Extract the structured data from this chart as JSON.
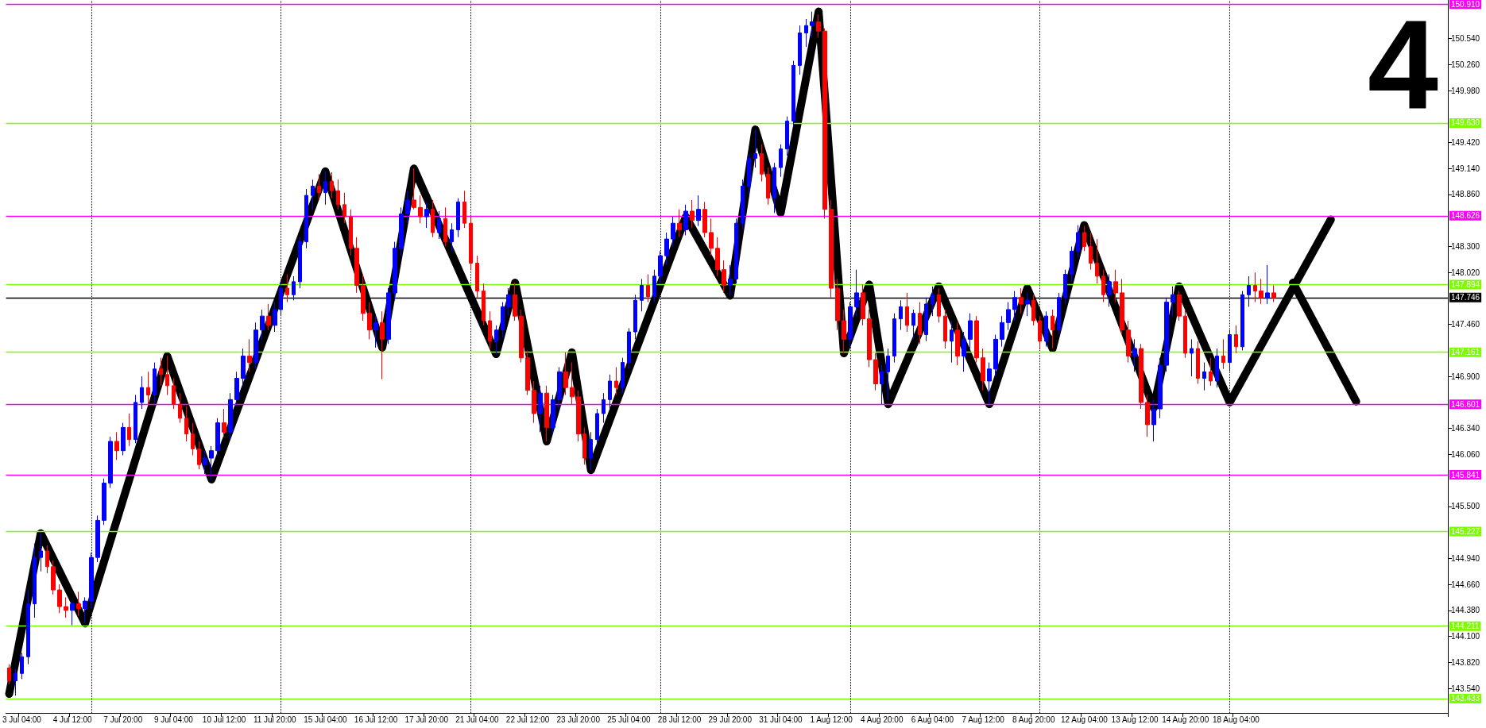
{
  "chart_data": {
    "type": "candlestick",
    "categories": [
      null,
      null,
      "3 Jul 04:00",
      null,
      null,
      null,
      null,
      null,
      null,
      null,
      "4 Jul 12:00",
      null,
      null,
      null,
      null,
      null,
      null,
      null,
      "7 Jul 20:00",
      null,
      null,
      null,
      null,
      null,
      null,
      null,
      "9 Jul 04:00",
      null,
      null,
      null,
      null,
      null,
      null,
      null,
      "10 Jul 12:00",
      null,
      null,
      null,
      null,
      null,
      null,
      null,
      "11 Jul 20:00",
      null,
      null,
      null,
      null,
      null,
      null,
      null,
      "15 Jul 04:00",
      null,
      null,
      null,
      null,
      null,
      null,
      null,
      "16 Jul 12:00",
      null,
      null,
      null,
      null,
      null,
      null,
      null,
      "17 Jul 20:00",
      null,
      null,
      null,
      null,
      null,
      null,
      null,
      "21 Jul 04:00",
      null,
      null,
      null,
      null,
      null,
      null,
      null,
      "22 Jul 12:00",
      null,
      null,
      null,
      null,
      null,
      null,
      null,
      "23 Jul 20:00",
      null,
      null,
      null,
      null,
      null,
      null,
      null,
      "25 Jul 04:00",
      null,
      null,
      null,
      null,
      null,
      null,
      null,
      "28 Jul 12:00",
      null,
      null,
      null,
      null,
      null,
      null,
      null,
      "29 Jul 20:00",
      null,
      null,
      null,
      null,
      null,
      null,
      null,
      "31 Jul 04:00",
      null,
      null,
      null,
      null,
      null,
      null,
      null,
      "1 Aug 12:00",
      null,
      null,
      null,
      null,
      null,
      null,
      null,
      "4 Aug 20:00",
      null,
      null,
      null,
      null,
      null,
      null,
      null,
      "6 Aug 04:00",
      null,
      null,
      null,
      null,
      null,
      null,
      null,
      "7 Aug 12:00",
      null,
      null,
      null,
      null,
      null,
      null,
      null,
      "8 Aug 20:00",
      null,
      null,
      null,
      null,
      null,
      null,
      null,
      "12 Aug 04:00",
      null,
      null,
      null,
      null,
      null,
      null,
      null,
      "13 Aug 12:00",
      null,
      null,
      null,
      null,
      null,
      null,
      null,
      "14 Aug 20:00",
      null,
      null,
      null,
      null,
      null,
      null,
      null,
      "18 Aug 04:00",
      null,
      null,
      null,
      null,
      null,
      null,
      null,
      null,
      null,
      null,
      null,
      null,
      null,
      null,
      null,
      null,
      null,
      null,
      null,
      null,
      null,
      null,
      null,
      null,
      null,
      null,
      null,
      null,
      null,
      null,
      null,
      null,
      null
    ],
    "ohlc": [
      [
        143.76,
        143.8,
        143.58,
        143.62
      ],
      [
        143.62,
        143.75,
        143.46,
        143.7
      ],
      [
        143.7,
        143.92,
        143.64,
        143.88
      ],
      [
        143.88,
        144.6,
        143.8,
        144.45
      ],
      [
        144.45,
        145.1,
        144.3,
        144.95
      ],
      [
        144.95,
        145.21,
        144.8,
        145.02
      ],
      [
        145.02,
        145.08,
        144.78,
        144.85
      ],
      [
        144.85,
        144.92,
        144.55,
        144.6
      ],
      [
        144.6,
        144.66,
        144.35,
        144.42
      ],
      [
        144.42,
        144.52,
        144.3,
        144.38
      ],
      [
        144.38,
        144.48,
        144.22,
        144.45
      ],
      [
        144.45,
        144.58,
        144.32,
        144.4
      ],
      [
        144.4,
        144.52,
        144.24,
        144.48
      ],
      [
        144.48,
        145.0,
        144.4,
        144.95
      ],
      [
        144.95,
        145.4,
        144.9,
        145.35
      ],
      [
        145.35,
        145.8,
        145.3,
        145.75
      ],
      [
        145.75,
        146.25,
        145.7,
        146.2
      ],
      [
        146.2,
        146.3,
        146.0,
        146.1
      ],
      [
        146.1,
        146.4,
        146.05,
        146.35
      ],
      [
        146.35,
        146.5,
        146.15,
        146.22
      ],
      [
        146.22,
        146.7,
        146.18,
        146.62
      ],
      [
        146.62,
        146.9,
        146.55,
        146.78
      ],
      [
        146.78,
        146.95,
        146.6,
        146.7
      ],
      [
        146.7,
        147.05,
        146.62,
        146.98
      ],
      [
        146.98,
        147.1,
        146.8,
        146.92
      ],
      [
        146.92,
        147.12,
        146.7,
        146.8
      ],
      [
        146.8,
        146.88,
        146.55,
        146.6
      ],
      [
        146.6,
        146.72,
        146.4,
        146.45
      ],
      [
        146.45,
        146.58,
        146.2,
        146.28
      ],
      [
        146.28,
        146.4,
        146.05,
        146.12
      ],
      [
        146.12,
        146.2,
        145.9,
        145.95
      ],
      [
        145.95,
        146.1,
        145.85,
        146.02
      ],
      [
        146.02,
        146.15,
        145.79,
        146.1
      ],
      [
        146.1,
        146.45,
        146.05,
        146.4
      ],
      [
        146.4,
        146.55,
        146.25,
        146.3
      ],
      [
        146.3,
        146.72,
        146.22,
        146.65
      ],
      [
        146.65,
        146.95,
        146.58,
        146.88
      ],
      [
        146.88,
        147.2,
        146.8,
        147.12
      ],
      [
        147.12,
        147.3,
        146.95,
        147.05
      ],
      [
        147.05,
        147.48,
        146.98,
        147.4
      ],
      [
        147.4,
        147.62,
        147.3,
        147.55
      ],
      [
        147.55,
        147.68,
        147.4,
        147.45
      ],
      [
        147.45,
        147.7,
        147.38,
        147.62
      ],
      [
        147.62,
        147.92,
        147.55,
        147.85
      ],
      [
        147.85,
        148.0,
        147.7,
        147.78
      ],
      [
        147.78,
        147.98,
        147.72,
        147.92
      ],
      [
        147.92,
        148.4,
        147.85,
        148.35
      ],
      [
        148.35,
        148.92,
        148.28,
        148.85
      ],
      [
        148.85,
        149.02,
        148.7,
        148.95
      ],
      [
        148.95,
        149.08,
        148.8,
        148.88
      ],
      [
        148.88,
        149.11,
        148.75,
        149.0
      ],
      [
        149.0,
        149.1,
        148.82,
        148.9
      ],
      [
        148.9,
        149.02,
        148.7,
        148.75
      ],
      [
        148.75,
        148.88,
        148.55,
        148.62
      ],
      [
        148.62,
        148.7,
        148.2,
        148.28
      ],
      [
        148.28,
        148.4,
        147.8,
        147.88
      ],
      [
        147.88,
        148.0,
        147.5,
        147.58
      ],
      [
        147.58,
        147.7,
        147.3,
        147.4
      ],
      [
        147.4,
        147.55,
        147.21,
        147.48
      ],
      [
        147.48,
        147.6,
        146.87,
        147.3
      ],
      [
        147.3,
        147.85,
        147.25,
        147.8
      ],
      [
        147.8,
        148.35,
        147.72,
        148.28
      ],
      [
        148.28,
        148.72,
        148.2,
        148.65
      ],
      [
        148.65,
        148.9,
        148.55,
        148.8
      ],
      [
        148.8,
        149.14,
        148.7,
        148.72
      ],
      [
        148.72,
        148.85,
        148.55,
        148.62
      ],
      [
        148.62,
        148.78,
        148.5,
        148.7
      ],
      [
        148.7,
        148.8,
        148.4,
        148.45
      ],
      [
        148.45,
        148.68,
        148.38,
        148.6
      ],
      [
        148.6,
        148.72,
        148.3,
        148.35
      ],
      [
        148.35,
        148.55,
        148.25,
        148.48
      ],
      [
        148.48,
        148.82,
        148.4,
        148.78
      ],
      [
        148.78,
        148.9,
        148.5,
        148.55
      ],
      [
        148.55,
        148.62,
        148.05,
        148.12
      ],
      [
        148.12,
        148.2,
        147.75,
        147.82
      ],
      [
        147.82,
        147.9,
        147.45,
        147.5
      ],
      [
        147.5,
        147.6,
        147.2,
        147.28
      ],
      [
        147.28,
        147.45,
        147.14,
        147.4
      ],
      [
        147.4,
        147.7,
        147.32,
        147.65
      ],
      [
        147.65,
        147.85,
        147.55,
        147.78
      ],
      [
        147.78,
        147.91,
        147.5,
        147.55
      ],
      [
        147.55,
        147.62,
        147.05,
        147.1
      ],
      [
        147.1,
        147.18,
        146.7,
        146.75
      ],
      [
        146.75,
        146.85,
        146.4,
        146.5
      ],
      [
        146.5,
        146.8,
        146.3,
        146.72
      ],
      [
        146.72,
        146.8,
        146.2,
        146.35
      ],
      [
        146.35,
        146.7,
        146.28,
        146.65
      ],
      [
        146.65,
        147.0,
        146.55,
        146.95
      ],
      [
        146.95,
        147.16,
        146.7,
        146.78
      ],
      [
        146.78,
        147.05,
        146.6,
        146.68
      ],
      [
        146.68,
        146.75,
        146.2,
        146.28
      ],
      [
        146.28,
        146.35,
        145.95,
        146.02
      ],
      [
        146.02,
        146.3,
        145.89,
        146.22
      ],
      [
        146.22,
        146.55,
        146.15,
        146.5
      ],
      [
        146.5,
        146.72,
        146.4,
        146.65
      ],
      [
        146.65,
        146.92,
        146.55,
        146.85
      ],
      [
        146.85,
        147.0,
        146.7,
        146.78
      ],
      [
        146.78,
        147.1,
        146.72,
        147.05
      ],
      [
        147.05,
        147.42,
        146.98,
        147.38
      ],
      [
        147.38,
        147.78,
        147.3,
        147.72
      ],
      [
        147.72,
        147.95,
        147.6,
        147.88
      ],
      [
        147.88,
        148.0,
        147.7,
        147.76
      ],
      [
        147.76,
        148.05,
        147.7,
        147.98
      ],
      [
        147.98,
        148.25,
        147.9,
        148.2
      ],
      [
        148.2,
        148.45,
        148.1,
        148.38
      ],
      [
        148.38,
        148.62,
        148.3,
        148.55
      ],
      [
        148.55,
        148.7,
        148.4,
        148.48
      ],
      [
        148.48,
        148.75,
        148.42,
        148.68
      ],
      [
        148.68,
        148.8,
        148.5,
        148.58
      ],
      [
        148.58,
        148.85,
        148.52,
        148.7
      ],
      [
        148.7,
        148.78,
        148.4,
        148.45
      ],
      [
        148.45,
        148.6,
        148.2,
        148.28
      ],
      [
        148.28,
        148.4,
        147.98,
        148.05
      ],
      [
        148.05,
        148.15,
        147.8,
        147.88
      ],
      [
        147.88,
        148.1,
        147.77,
        147.95
      ],
      [
        147.95,
        148.6,
        147.9,
        148.55
      ],
      [
        148.55,
        149.02,
        148.48,
        148.95
      ],
      [
        148.95,
        149.3,
        148.85,
        149.25
      ],
      [
        149.25,
        149.56,
        149.15,
        149.3
      ],
      [
        149.3,
        149.4,
        149.0,
        149.08
      ],
      [
        149.08,
        149.15,
        148.75,
        148.82
      ],
      [
        148.82,
        149.2,
        148.66,
        149.15
      ],
      [
        149.15,
        149.4,
        149.05,
        149.35
      ],
      [
        149.35,
        149.7,
        149.28,
        149.65
      ],
      [
        149.65,
        150.3,
        149.6,
        150.25
      ],
      [
        150.25,
        150.68,
        150.15,
        150.6
      ],
      [
        150.6,
        150.75,
        150.45,
        150.68
      ],
      [
        150.68,
        150.83,
        150.55,
        150.72
      ],
      [
        150.72,
        150.8,
        150.55,
        150.62
      ],
      [
        150.62,
        150.65,
        148.6,
        148.7
      ],
      [
        148.7,
        148.8,
        147.75,
        147.85
      ],
      [
        147.85,
        147.95,
        147.4,
        147.5
      ],
      [
        147.5,
        147.62,
        147.15,
        147.3
      ],
      [
        147.3,
        147.7,
        147.22,
        147.65
      ],
      [
        147.65,
        148.05,
        147.55,
        147.8
      ],
      [
        147.8,
        147.89,
        147.45,
        147.52
      ],
      [
        147.52,
        147.62,
        147.0,
        147.08
      ],
      [
        147.08,
        147.15,
        146.75,
        146.82
      ],
      [
        146.82,
        147.02,
        146.6,
        146.95
      ],
      [
        146.95,
        147.2,
        146.65,
        147.12
      ],
      [
        147.12,
        147.58,
        147.05,
        147.52
      ],
      [
        147.52,
        147.72,
        147.4,
        147.65
      ],
      [
        147.65,
        147.8,
        147.38,
        147.45
      ],
      [
        147.45,
        147.62,
        147.3,
        147.58
      ],
      [
        147.58,
        147.7,
        147.25,
        147.35
      ],
      [
        147.35,
        147.75,
        147.28,
        147.68
      ],
      [
        147.68,
        147.87,
        147.55,
        147.78
      ],
      [
        147.78,
        147.85,
        147.48,
        147.55
      ],
      [
        147.55,
        147.62,
        147.2,
        147.28
      ],
      [
        147.28,
        147.5,
        147.05,
        147.4
      ],
      [
        147.4,
        147.48,
        147.02,
        147.12
      ],
      [
        147.12,
        147.38,
        146.95,
        147.3
      ],
      [
        147.3,
        147.58,
        147.2,
        147.5
      ],
      [
        147.5,
        147.55,
        147.05,
        147.1
      ],
      [
        147.1,
        147.2,
        146.75,
        146.85
      ],
      [
        146.85,
        147.05,
        146.6,
        146.98
      ],
      [
        146.98,
        147.35,
        146.9,
        147.3
      ],
      [
        147.3,
        147.55,
        147.22,
        147.48
      ],
      [
        147.48,
        147.7,
        147.4,
        147.62
      ],
      [
        147.62,
        147.82,
        147.5,
        147.75
      ],
      [
        147.75,
        147.85,
        147.58,
        147.68
      ],
      [
        147.68,
        147.8,
        147.55,
        147.72
      ],
      [
        147.72,
        147.78,
        147.45,
        147.5
      ],
      [
        147.5,
        147.55,
        147.2,
        147.28
      ],
      [
        147.28,
        147.6,
        147.22,
        147.55
      ],
      [
        147.55,
        147.62,
        147.2,
        147.4
      ],
      [
        147.4,
        147.8,
        147.35,
        147.75
      ],
      [
        147.75,
        148.05,
        147.68,
        148.0
      ],
      [
        148.0,
        148.3,
        147.92,
        148.25
      ],
      [
        148.25,
        148.53,
        148.18,
        148.45
      ],
      [
        148.45,
        148.52,
        148.25,
        148.3
      ],
      [
        148.3,
        148.45,
        148.05,
        148.12
      ],
      [
        148.12,
        148.38,
        147.9,
        147.98
      ],
      [
        147.98,
        148.05,
        147.7,
        147.78
      ],
      [
        147.78,
        148.0,
        147.65,
        147.92
      ],
      [
        147.92,
        148.05,
        147.7,
        147.8
      ],
      [
        147.8,
        147.95,
        147.35,
        147.4
      ],
      [
        147.4,
        147.5,
        147.05,
        147.12
      ],
      [
        147.12,
        147.3,
        146.95,
        147.2
      ],
      [
        147.2,
        147.25,
        146.55,
        146.62
      ],
      [
        146.62,
        146.7,
        146.25,
        146.38
      ],
      [
        146.38,
        146.65,
        146.2,
        146.55
      ],
      [
        146.55,
        147.1,
        146.45,
        147.02
      ],
      [
        147.02,
        147.75,
        146.95,
        147.7
      ],
      [
        147.7,
        147.87,
        147.55,
        147.78
      ],
      [
        147.78,
        147.82,
        147.5,
        147.55
      ],
      [
        147.55,
        147.62,
        147.1,
        147.15
      ],
      [
        147.15,
        147.3,
        146.9,
        147.2
      ],
      [
        147.2,
        147.28,
        146.82,
        146.88
      ],
      [
        146.88,
        147.05,
        146.75,
        146.95
      ],
      [
        146.95,
        147.1,
        146.8,
        146.85
      ],
      [
        146.85,
        147.2,
        146.78,
        147.12
      ],
      [
        147.12,
        147.3,
        146.98,
        147.05
      ],
      [
        147.05,
        147.4,
        146.95,
        147.35
      ],
      [
        147.35,
        147.45,
        147.15,
        147.22
      ],
      [
        147.22,
        147.82,
        147.18,
        147.78
      ],
      [
        147.78,
        147.98,
        147.65,
        147.88
      ],
      [
        147.88,
        148.02,
        147.7,
        147.82
      ],
      [
        147.82,
        147.95,
        147.68,
        147.75
      ],
      [
        147.75,
        148.1,
        147.68,
        147.8
      ],
      [
        147.8,
        147.88,
        147.7,
        147.75
      ],
      null,
      null,
      null,
      null,
      null,
      null,
      null,
      null,
      null,
      null,
      null,
      null,
      null,
      null,
      null,
      null,
      null,
      null,
      null,
      null,
      null,
      null,
      null,
      null,
      null,
      null,
      null
    ],
    "colors": [
      "#ff0000",
      "#0000ff",
      "#0000ff",
      "#0000ff",
      "#0000ff",
      "#0000ff",
      "#ff0000",
      "#ff0000",
      "#ff0000",
      "#ff0000",
      "#0000ff",
      "#ff0000",
      "#0000ff",
      "#0000ff",
      "#0000ff",
      "#0000ff",
      "#0000ff",
      "#ff0000",
      "#0000ff",
      "#ff0000",
      "#0000ff",
      "#0000ff",
      "#ff0000",
      "#0000ff",
      "#ff0000",
      "#ff0000",
      "#ff0000",
      "#ff0000",
      "#ff0000",
      "#ff0000",
      "#ff0000",
      "#0000ff",
      "#0000ff",
      "#0000ff",
      "#ff0000",
      "#0000ff",
      "#0000ff",
      "#0000ff",
      "#ff0000",
      "#0000ff",
      "#0000ff",
      "#ff0000",
      "#0000ff",
      "#0000ff",
      "#ff0000",
      "#0000ff",
      "#0000ff",
      "#0000ff",
      "#0000ff",
      "#ff0000",
      "#0000ff",
      "#ff0000",
      "#ff0000",
      "#ff0000",
      "#ff0000",
      "#ff0000",
      "#ff0000",
      "#ff0000",
      "#0000ff",
      "#ff0000",
      "#0000ff",
      "#0000ff",
      "#0000ff",
      "#0000ff",
      "#ff0000",
      "#ff0000",
      "#0000ff",
      "#ff0000",
      "#0000ff",
      "#ff0000",
      "#0000ff",
      "#0000ff",
      "#ff0000",
      "#ff0000",
      "#ff0000",
      "#ff0000",
      "#ff0000",
      "#0000ff",
      "#0000ff",
      "#0000ff",
      "#ff0000",
      "#ff0000",
      "#ff0000",
      "#ff0000",
      "#0000ff",
      "#ff0000",
      "#0000ff",
      "#0000ff",
      "#ff0000",
      "#ff0000",
      "#ff0000",
      "#ff0000",
      "#0000ff",
      "#0000ff",
      "#0000ff",
      "#0000ff",
      "#ff0000",
      "#0000ff",
      "#0000ff",
      "#0000ff",
      "#0000ff",
      "#ff0000",
      "#0000ff",
      "#0000ff",
      "#0000ff",
      "#0000ff",
      "#ff0000",
      "#0000ff",
      "#ff0000",
      "#0000ff",
      "#ff0000",
      "#ff0000",
      "#ff0000",
      "#ff0000",
      "#0000ff",
      "#0000ff",
      "#0000ff",
      "#0000ff",
      "#0000ff",
      "#ff0000",
      "#ff0000",
      "#0000ff",
      "#0000ff",
      "#0000ff",
      "#0000ff",
      "#0000ff",
      "#0000ff",
      "#0000ff",
      "#ff0000",
      "#ff0000",
      "#ff0000",
      "#ff0000",
      "#ff0000",
      "#0000ff",
      "#0000ff",
      "#ff0000",
      "#ff0000",
      "#ff0000",
      "#0000ff",
      "#0000ff",
      "#0000ff",
      "#0000ff",
      "#ff0000",
      "#0000ff",
      "#ff0000",
      "#0000ff",
      "#0000ff",
      "#ff0000",
      "#ff0000",
      "#0000ff",
      "#ff0000",
      "#0000ff",
      "#0000ff",
      "#ff0000",
      "#ff0000",
      "#0000ff",
      "#0000ff",
      "#0000ff",
      "#0000ff",
      "#0000ff",
      "#ff0000",
      "#0000ff",
      "#ff0000",
      "#ff0000",
      "#0000ff",
      "#ff0000",
      "#0000ff",
      "#0000ff",
      "#0000ff",
      "#0000ff",
      "#ff0000",
      "#ff0000",
      "#ff0000",
      "#ff0000",
      "#0000ff",
      "#ff0000",
      "#ff0000",
      "#ff0000",
      "#0000ff",
      "#ff0000",
      "#ff0000",
      "#0000ff",
      "#0000ff",
      "#0000ff",
      "#0000ff",
      "#ff0000",
      "#ff0000",
      "#0000ff",
      "#ff0000",
      "#0000ff",
      "#ff0000",
      "#0000ff",
      "#ff0000",
      "#0000ff",
      "#ff0000",
      "#0000ff",
      "#0000ff",
      "#ff0000",
      "#ff0000",
      "#0000ff",
      "#ff0000",
      null,
      null,
      null,
      null,
      null,
      null,
      null,
      null,
      null,
      null,
      null,
      null,
      null,
      null,
      null,
      null,
      null,
      null,
      null,
      null,
      null,
      null,
      null,
      null,
      null,
      null,
      null
    ],
    "series": [
      {
        "type": "line",
        "color": "#000000",
        "values": [
          143.48,
          null,
          null,
          null,
          null,
          145.21,
          null,
          null,
          null,
          null,
          null,
          null,
          144.24,
          null,
          null,
          null,
          null,
          null,
          null,
          null,
          null,
          null,
          null,
          null,
          null,
          147.12,
          null,
          null,
          null,
          null,
          null,
          null,
          145.79,
          null,
          null,
          null,
          null,
          null,
          null,
          null,
          null,
          null,
          null,
          null,
          null,
          null,
          null,
          null,
          null,
          null,
          149.11,
          null,
          null,
          null,
          null,
          null,
          null,
          null,
          null,
          147.21,
          null,
          null,
          null,
          null,
          149.14,
          null,
          null,
          null,
          null,
          null,
          null,
          null,
          null,
          null,
          null,
          null,
          null,
          147.14,
          null,
          null,
          147.91,
          null,
          null,
          null,
          null,
          146.2,
          null,
          null,
          null,
          147.16,
          null,
          null,
          145.89,
          null,
          null,
          null,
          null,
          null,
          null,
          null,
          null,
          null,
          null,
          null,
          null,
          null,
          null,
          148.62,
          null,
          null,
          null,
          null,
          null,
          null,
          147.77,
          null,
          null,
          null,
          149.56,
          null,
          null,
          null,
          148.66,
          null,
          null,
          null,
          null,
          null,
          150.83,
          null,
          null,
          null,
          147.15,
          null,
          null,
          null,
          147.89,
          null,
          null,
          146.6,
          null,
          null,
          null,
          null,
          null,
          null,
          null,
          147.87,
          null,
          null,
          null,
          null,
          null,
          null,
          null,
          146.6,
          null,
          null,
          null,
          null,
          null,
          147.85,
          null,
          null,
          null,
          147.2,
          null,
          null,
          null,
          null,
          148.53,
          null,
          null,
          null,
          null,
          null,
          null,
          null,
          null,
          null,
          null,
          146.56,
          null,
          null,
          null,
          147.87,
          null,
          null,
          null,
          null,
          null,
          null,
          null,
          146.62,
          null,
          null,
          null,
          null,
          null,
          null,
          null,
          null,
          null,
          null,
          null,
          null,
          null,
          null,
          null,
          148.59,
          null,
          null,
          null,
          null,
          null,
          null,
          null,
          null,
          null,
          null,
          null,
          null,
          null,
          null,
          null,
          null,
          null,
          null
        ]
      },
      {
        "type": "line",
        "color": "#000000",
        "values": [
          null,
          null,
          null,
          null,
          null,
          null,
          null,
          null,
          null,
          null,
          null,
          null,
          null,
          null,
          null,
          null,
          null,
          null,
          null,
          null,
          null,
          null,
          null,
          null,
          null,
          null,
          null,
          null,
          null,
          null,
          null,
          null,
          null,
          null,
          null,
          null,
          null,
          null,
          null,
          null,
          null,
          null,
          null,
          null,
          null,
          null,
          null,
          null,
          null,
          null,
          null,
          null,
          null,
          null,
          null,
          null,
          null,
          null,
          null,
          null,
          null,
          null,
          null,
          null,
          null,
          null,
          null,
          null,
          null,
          null,
          null,
          null,
          null,
          null,
          null,
          null,
          null,
          null,
          null,
          null,
          null,
          null,
          null,
          null,
          null,
          null,
          null,
          null,
          null,
          null,
          null,
          null,
          null,
          null,
          null,
          null,
          null,
          null,
          null,
          null,
          null,
          null,
          null,
          null,
          null,
          null,
          null,
          null,
          null,
          null,
          null,
          null,
          null,
          null,
          null,
          null,
          null,
          null,
          null,
          null,
          null,
          null,
          null,
          null,
          null,
          null,
          null,
          null,
          null,
          null,
          null,
          null,
          null,
          null,
          null,
          null,
          null,
          null,
          null,
          null,
          null,
          null,
          null,
          null,
          null,
          null,
          null,
          null,
          null,
          null,
          null,
          null,
          null,
          null,
          null,
          null,
          null,
          null,
          null,
          null,
          null,
          null,
          null,
          null,
          null,
          null,
          null,
          null,
          null,
          null,
          null,
          null,
          null,
          null,
          null,
          null,
          null,
          null,
          null,
          null,
          null,
          null,
          null,
          null,
          null,
          null,
          null,
          null,
          null,
          null,
          null,
          null,
          null,
          null,
          null,
          null,
          null,
          null,
          null,
          null,
          null,
          null,
          null,
          147.91,
          null,
          null,
          null,
          null,
          null,
          null,
          null,
          null,
          null,
          146.63,
          null,
          null,
          null,
          null,
          null,
          null,
          null,
          null,
          null,
          null,
          null,
          null,
          null,
          null
        ]
      }
    ],
    "ylim": [
      143.275,
      150.955
    ],
    "yticks": [
      {
        "value": 143.54,
        "label": "143.540"
      },
      {
        "value": 143.82,
        "label": "143.820"
      },
      {
        "value": 144.1,
        "label": "144.100"
      },
      {
        "value": 144.38,
        "label": "144.380"
      },
      {
        "value": 144.66,
        "label": "144.660"
      },
      {
        "value": 144.94,
        "label": "144.940"
      },
      {
        "value": 145.5,
        "label": "145.500"
      },
      {
        "value": 146.06,
        "label": "146.060"
      },
      {
        "value": 146.34,
        "label": "146.340"
      },
      {
        "value": 146.9,
        "label": "146.900"
      },
      {
        "value": 147.46,
        "label": "147.460"
      },
      {
        "value": 148.02,
        "label": "148.020"
      },
      {
        "value": 148.3,
        "label": "148.300"
      },
      {
        "value": 148.86,
        "label": "148.860"
      },
      {
        "value": 149.14,
        "label": "149.140"
      },
      {
        "value": 149.42,
        "label": "149.420"
      },
      {
        "value": 149.98,
        "label": "149.980"
      },
      {
        "value": 150.26,
        "label": "150.260"
      },
      {
        "value": 150.54,
        "label": "150.540"
      }
    ],
    "ref_lines": [
      {
        "axis": "y",
        "value": 150.91,
        "label": "150.910",
        "color": "#ff00ff",
        "line_style": "solid"
      },
      {
        "axis": "y",
        "value": 149.63,
        "label": "149.630",
        "color": "#7cfc00",
        "line_style": "solid"
      },
      {
        "axis": "y",
        "value": 148.626,
        "label": "148.626",
        "color": "#ff00ff",
        "line_style": "solid"
      },
      {
        "axis": "y",
        "value": 147.894,
        "label": "147.894",
        "color": "#7cfc00",
        "line_style": "solid"
      },
      {
        "axis": "y",
        "value": 147.746,
        "label": "147.746",
        "color": "#000000",
        "line_style": "solid"
      },
      {
        "axis": "y",
        "value": 147.161,
        "label": "147.161",
        "color": "#7cfc00",
        "line_style": "solid"
      },
      {
        "axis": "y",
        "value": 146.601,
        "label": "146.601",
        "color": "#ff00ff",
        "line_style": "solid"
      },
      {
        "axis": "y",
        "value": 145.841,
        "label": "145.841",
        "color": "#ff00ff",
        "line_style": "solid"
      },
      {
        "axis": "y",
        "value": 145.227,
        "label": "145.227",
        "color": "#7cfc00",
        "line_style": "solid"
      },
      {
        "axis": "y",
        "value": 144.211,
        "label": "144.211",
        "color": "#7cfc00",
        "line_style": "solid"
      },
      {
        "axis": "y",
        "value": 143.433,
        "label": "143.433",
        "color": "#7cfc00",
        "line_style": "solid"
      }
    ],
    "annotations": [
      "4"
    ],
    "line_style": "solid"
  }
}
